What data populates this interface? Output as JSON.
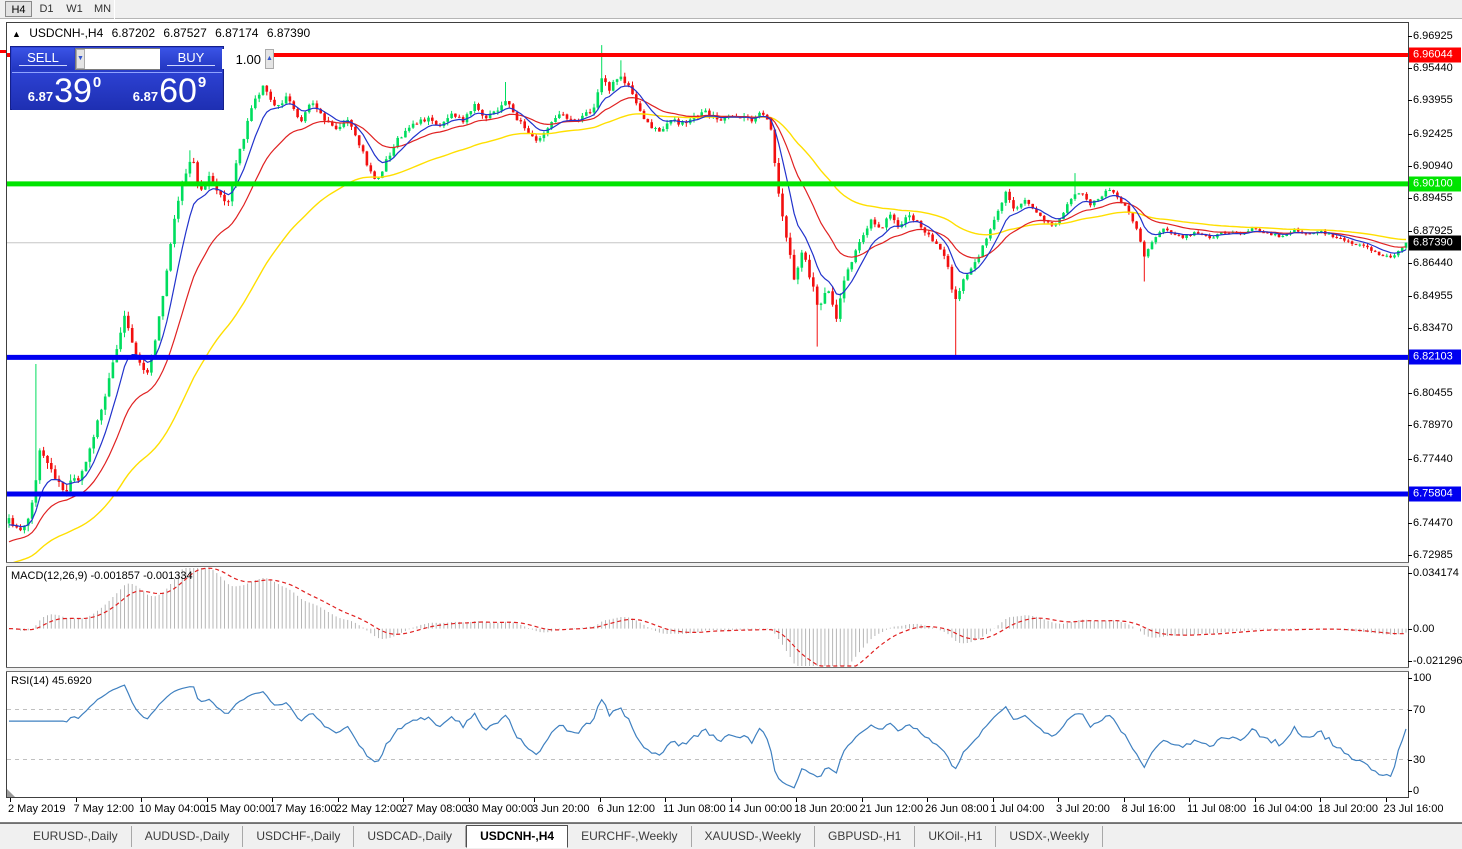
{
  "toolbar": {
    "periods": [
      "H4",
      "D1",
      "W1",
      "MN"
    ],
    "active_period": "H4"
  },
  "chart_header": {
    "collapse_icon": "▲",
    "symbol": "USDCNH-,H4",
    "open": "6.87202",
    "high": "6.87527",
    "low": "6.87174",
    "close": "6.87390"
  },
  "trade_panel": {
    "sell_label": "SELL",
    "buy_label": "BUY",
    "volume": "1.00",
    "spinner_down_icon": "▼",
    "spinner_up_icon": "▲",
    "sell_price_small": "6.87",
    "sell_price_big": "39",
    "sell_price_sup": "0",
    "buy_price_small": "6.87",
    "buy_price_big": "60",
    "buy_price_sup": "9"
  },
  "indicators": {
    "macd_label": "MACD(12,26,9)",
    "macd_value_main": "-0.001857",
    "macd_value_signal": "-0.001334",
    "rsi_label": "RSI(14)",
    "rsi_value": "45.6920"
  },
  "axes": {
    "price_ticks": [
      "6.96925",
      "6.95440",
      "6.93955",
      "6.92425",
      "6.90940",
      "6.89455",
      "6.87925",
      "6.86440",
      "6.84955",
      "6.83470",
      "6.80455",
      "6.78970",
      "6.77440",
      "6.74470",
      "6.72985"
    ],
    "macd_ticks": [
      {
        "label": "0.034174",
        "value": 0.034174
      },
      {
        "label": "0.00",
        "value": 0
      },
      {
        "label": "-0.021296",
        "value": -0.021296
      }
    ],
    "rsi_ticks": [
      {
        "label": "100",
        "value": 100
      },
      {
        "label": "70",
        "value": 70
      },
      {
        "label": "30",
        "value": 30
      },
      {
        "label": "0",
        "value": 0
      }
    ],
    "time_labels": [
      "2 May 2019",
      "7 May 12:00",
      "10 May 04:00",
      "15 May 00:00",
      "17 May 16:00",
      "22 May 12:00",
      "27 May 08:00",
      "30 May 00:00",
      "3 Jun 20:00",
      "6 Jun 12:00",
      "11 Jun 08:00",
      "14 Jun 00:00",
      "18 Jun 20:00",
      "21 Jun 12:00",
      "26 Jun 08:00",
      "1 Jul 04:00",
      "3 Jul 20:00",
      "8 Jul 16:00",
      "11 Jul 08:00",
      "16 Jul 04:00",
      "18 Jul 20:00",
      "23 Jul 16:00"
    ]
  },
  "tabs": [
    "EURUSD-,Daily",
    "AUDUSD-,Daily",
    "USDCHF-,Daily",
    "USDCAD-,Daily",
    "USDCNH-,H4",
    "EURCHF-,Weekly",
    "XAUUSD-,Weekly",
    "GBPUSD-,H1",
    "UKOil-,H1",
    "USDX-,Weekly"
  ],
  "active_tab": "USDCNH-,H4",
  "colors": {
    "bull": "#00dd5e",
    "bear": "#f20f0f",
    "ma_fast": "#2233cc",
    "ma_mid": "#e02222",
    "ma_slow": "#ffdf00",
    "macd_hist": "#b6b6b6",
    "macd_signal": "#e02020",
    "rsi_line": "#3f80c0",
    "rsi_level": "#c0c0c0",
    "current_price_line": "#c6c6c6",
    "line_red": "#fe0000",
    "line_green": "#00e400",
    "line_blue": "#0000f0",
    "panel_blue": "#2236c0"
  },
  "chart_data": {
    "type": "candlestick",
    "symbol": "USDCNH",
    "timeframe": "H4",
    "bars": 364,
    "price_axis_range": {
      "top": 6.9752,
      "bottom": 6.7267
    },
    "current_price": {
      "value": 6.8739,
      "label": "6.87390"
    },
    "horizontal_lines": [
      {
        "price": 6.96044,
        "label": "6.96044",
        "color": "#fe0000",
        "width": 4
      },
      {
        "price": 6.901,
        "label": "6.90100",
        "color": "#00e400",
        "width": 5
      },
      {
        "price": 6.82103,
        "label": "6.82103",
        "color": "#0000f0",
        "width": 5
      },
      {
        "price": 6.75804,
        "label": "6.75804",
        "color": "#0000f0",
        "width": 5
      }
    ],
    "close_keyframes": [
      [
        0,
        6.746
      ],
      [
        0.01,
        6.74
      ],
      [
        0.018,
        6.756
      ],
      [
        0.022,
        6.778
      ],
      [
        0.03,
        6.768
      ],
      [
        0.04,
        6.76
      ],
      [
        0.05,
        6.766
      ],
      [
        0.06,
        6.783
      ],
      [
        0.068,
        6.8
      ],
      [
        0.075,
        6.82
      ],
      [
        0.082,
        6.84
      ],
      [
        0.09,
        6.824
      ],
      [
        0.098,
        6.812
      ],
      [
        0.105,
        6.83
      ],
      [
        0.112,
        6.856
      ],
      [
        0.118,
        6.884
      ],
      [
        0.125,
        6.904
      ],
      [
        0.131,
        6.913
      ],
      [
        0.137,
        6.896
      ],
      [
        0.143,
        6.904
      ],
      [
        0.15,
        6.898
      ],
      [
        0.156,
        6.891
      ],
      [
        0.162,
        6.908
      ],
      [
        0.169,
        6.925
      ],
      [
        0.176,
        6.94
      ],
      [
        0.182,
        6.946
      ],
      [
        0.19,
        6.937
      ],
      [
        0.2,
        6.941
      ],
      [
        0.209,
        6.93
      ],
      [
        0.217,
        6.939
      ],
      [
        0.226,
        6.931
      ],
      [
        0.234,
        6.927
      ],
      [
        0.242,
        6.931
      ],
      [
        0.25,
        6.921
      ],
      [
        0.257,
        6.909
      ],
      [
        0.264,
        6.902
      ],
      [
        0.271,
        6.913
      ],
      [
        0.279,
        6.922
      ],
      [
        0.29,
        6.929
      ],
      [
        0.3,
        6.931
      ],
      [
        0.309,
        6.928
      ],
      [
        0.317,
        6.934
      ],
      [
        0.325,
        6.93
      ],
      [
        0.333,
        6.937
      ],
      [
        0.341,
        6.931
      ],
      [
        0.349,
        6.934
      ],
      [
        0.356,
        6.941
      ],
      [
        0.363,
        6.931
      ],
      [
        0.371,
        6.926
      ],
      [
        0.379,
        6.92
      ],
      [
        0.387,
        6.928
      ],
      [
        0.395,
        6.933
      ],
      [
        0.403,
        6.93
      ],
      [
        0.411,
        6.932
      ],
      [
        0.419,
        6.936
      ],
      [
        0.425,
        6.951
      ],
      [
        0.43,
        6.944
      ],
      [
        0.436,
        6.951
      ],
      [
        0.442,
        6.948
      ],
      [
        0.45,
        6.937
      ],
      [
        0.457,
        6.929
      ],
      [
        0.465,
        6.925
      ],
      [
        0.473,
        6.931
      ],
      [
        0.481,
        6.928
      ],
      [
        0.49,
        6.932
      ],
      [
        0.5,
        6.934
      ],
      [
        0.51,
        6.93
      ],
      [
        0.52,
        6.933
      ],
      [
        0.53,
        6.93
      ],
      [
        0.54,
        6.934
      ],
      [
        0.545,
        6.929
      ],
      [
        0.551,
        6.897
      ],
      [
        0.557,
        6.876
      ],
      [
        0.562,
        6.858
      ],
      [
        0.568,
        6.871
      ],
      [
        0.574,
        6.857
      ],
      [
        0.58,
        6.842
      ],
      [
        0.586,
        6.853
      ],
      [
        0.592,
        6.839
      ],
      [
        0.598,
        6.857
      ],
      [
        0.604,
        6.867
      ],
      [
        0.61,
        6.876
      ],
      [
        0.617,
        6.884
      ],
      [
        0.624,
        6.879
      ],
      [
        0.63,
        6.887
      ],
      [
        0.637,
        6.881
      ],
      [
        0.644,
        6.887
      ],
      [
        0.65,
        6.884
      ],
      [
        0.657,
        6.878
      ],
      [
        0.664,
        6.873
      ],
      [
        0.671,
        6.867
      ],
      [
        0.677,
        6.846
      ],
      [
        0.683,
        6.857
      ],
      [
        0.689,
        6.863
      ],
      [
        0.695,
        6.869
      ],
      [
        0.701,
        6.878
      ],
      [
        0.708,
        6.889
      ],
      [
        0.714,
        6.897
      ],
      [
        0.72,
        6.889
      ],
      [
        0.727,
        6.894
      ],
      [
        0.734,
        6.889
      ],
      [
        0.741,
        6.884
      ],
      [
        0.748,
        6.882
      ],
      [
        0.754,
        6.887
      ],
      [
        0.761,
        6.895
      ],
      [
        0.768,
        6.897
      ],
      [
        0.774,
        6.891
      ],
      [
        0.781,
        6.895
      ],
      [
        0.787,
        6.899
      ],
      [
        0.794,
        6.894
      ],
      [
        0.8,
        6.89
      ],
      [
        0.807,
        6.881
      ],
      [
        0.813,
        6.867
      ],
      [
        0.819,
        6.875
      ],
      [
        0.826,
        6.881
      ],
      [
        0.833,
        6.878
      ],
      [
        0.84,
        6.876
      ],
      [
        0.85,
        6.879
      ],
      [
        0.86,
        6.876
      ],
      [
        0.87,
        6.879
      ],
      [
        0.88,
        6.878
      ],
      [
        0.89,
        6.88
      ],
      [
        0.9,
        6.878
      ],
      [
        0.91,
        6.877
      ],
      [
        0.92,
        6.88
      ],
      [
        0.93,
        6.878
      ],
      [
        0.94,
        6.879
      ],
      [
        0.95,
        6.876
      ],
      [
        0.96,
        6.874
      ],
      [
        0.97,
        6.872
      ],
      [
        0.98,
        6.869
      ],
      [
        0.99,
        6.867
      ],
      [
        1,
        6.8739
      ]
    ],
    "spikes": [
      {
        "t": 0.02,
        "type": "high",
        "price": 6.818
      },
      {
        "t": 0.13,
        "type": "high",
        "price": 6.9165
      },
      {
        "t": 0.356,
        "type": "high",
        "price": 6.948
      },
      {
        "t": 0.425,
        "type": "high",
        "price": 6.965
      },
      {
        "t": 0.437,
        "type": "high",
        "price": 6.958
      },
      {
        "t": 0.579,
        "type": "low",
        "price": 6.826
      },
      {
        "t": 0.678,
        "type": "low",
        "price": 6.8215
      },
      {
        "t": 0.762,
        "type": "high",
        "price": 6.906
      },
      {
        "t": 0.813,
        "type": "low",
        "price": 6.856
      }
    ],
    "moving_averages": {
      "fast_period": 8,
      "mid_period": 21,
      "slow_period": 55
    },
    "macd": {
      "fast": 12,
      "slow": 26,
      "signal": 9,
      "axis_max": 0.034174,
      "axis_min": -0.021296,
      "current_main": -0.001857,
      "current_signal": -0.001334
    },
    "rsi": {
      "period": 14,
      "current": 45.692,
      "levels": [
        70,
        30
      ],
      "axis": [
        0,
        100
      ]
    }
  }
}
